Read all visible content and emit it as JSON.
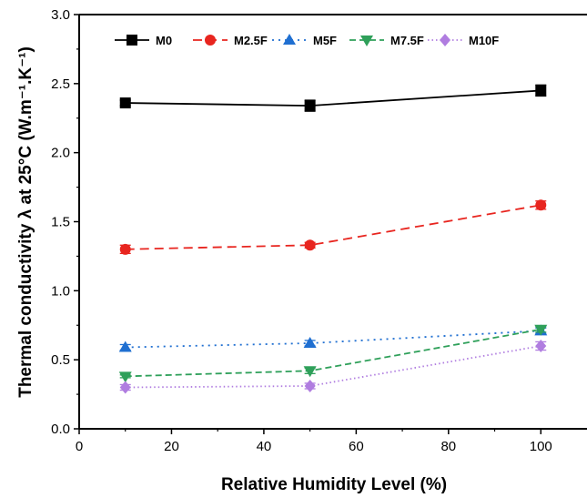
{
  "chart_data": {
    "type": "line",
    "title": "",
    "xlabel": "Relative Humidity Level (%)",
    "ylabel": "Thermal conductivity λ at 25°C (W.m⁻¹.K⁻¹)",
    "xlim": [
      0,
      110
    ],
    "ylim": [
      0,
      3.0
    ],
    "x_ticks": [
      "0",
      "20",
      "40",
      "60",
      "80",
      "100"
    ],
    "y_ticks": [
      "0.0",
      "0.5",
      "1.0",
      "1.5",
      "2.0",
      "2.5",
      "3.0"
    ],
    "x": [
      10,
      50,
      100
    ],
    "grid": false,
    "legend_position": "top",
    "series": [
      {
        "name": "M0",
        "values": [
          2.36,
          2.34,
          2.45
        ],
        "errors": [
          0.02,
          0.04,
          0.04
        ],
        "color": "#000000",
        "marker": "square",
        "dash": "solid"
      },
      {
        "name": "M2.5F",
        "values": [
          1.3,
          1.33,
          1.62
        ],
        "errors": [
          0.03,
          0.02,
          0.03
        ],
        "color": "#e8251f",
        "marker": "circle",
        "dash": "dashed"
      },
      {
        "name": "M5F",
        "values": [
          0.59,
          0.62,
          0.71
        ],
        "errors": [
          0.02,
          0.02,
          0.02
        ],
        "color": "#1f6fd1",
        "marker": "triangle-up",
        "dash": "dotted"
      },
      {
        "name": "M7.5F",
        "values": [
          0.38,
          0.42,
          0.72
        ],
        "errors": [
          0.01,
          0.02,
          0.02
        ],
        "color": "#2fa05a",
        "marker": "triangle-down",
        "dash": "dashdot"
      },
      {
        "name": "M10F",
        "values": [
          0.3,
          0.31,
          0.6
        ],
        "errors": [
          0.02,
          0.02,
          0.03
        ],
        "color": "#b07de0",
        "marker": "diamond",
        "dash": "dot-fine"
      }
    ]
  }
}
